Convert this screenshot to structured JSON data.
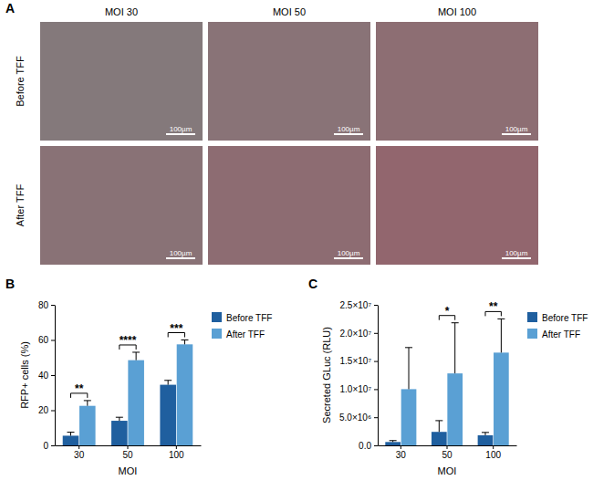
{
  "figure_a": {
    "panel": "A",
    "columns": [
      "MOI 30",
      "MOI 50",
      "MOI 100"
    ],
    "rows": [
      "Before TFF",
      "After TFF"
    ],
    "scale_bar": "100µm"
  },
  "chart_data": [
    {
      "panel": "B",
      "type": "bar",
      "categories": [
        "30",
        "50",
        "100"
      ],
      "x_label": "MOI",
      "y_label": "RFP+ cells (%)",
      "ylim": [
        0,
        80
      ],
      "yticks": [
        0,
        20,
        40,
        60,
        80
      ],
      "legend": "right",
      "series": [
        {
          "name": "Before TFF",
          "color": "#1f5f9f",
          "values": [
            5.5,
            14,
            34.5
          ],
          "errors": [
            2,
            2,
            2.5
          ]
        },
        {
          "name": "After TFF",
          "color": "#5aa0d4",
          "values": [
            22.5,
            48.5,
            57.5
          ],
          "errors": [
            3,
            4.5,
            2.5
          ]
        }
      ],
      "significance": [
        "**",
        "****",
        "***"
      ]
    },
    {
      "panel": "C",
      "type": "bar",
      "categories": [
        "30",
        "50",
        "100"
      ],
      "x_label": "MOI",
      "y_label": "Secreted GLuc (RLU)",
      "ylim": [
        0,
        25000000
      ],
      "yticks": [
        {
          "value": 0,
          "label": "0.0"
        },
        {
          "value": 5000000,
          "label": "5.0×10⁶"
        },
        {
          "value": 10000000,
          "label": "1.0×10⁷"
        },
        {
          "value": 15000000,
          "label": "1.5×10⁷"
        },
        {
          "value": 20000000,
          "label": "2.0×10⁷"
        },
        {
          "value": 25000000,
          "label": "2.5×10⁷"
        }
      ],
      "legend": "right",
      "series": [
        {
          "name": "Before TFF",
          "color": "#1f5f9f",
          "values": [
            600000,
            2400000,
            1800000
          ],
          "errors": [
            250000,
            2000000,
            500000
          ]
        },
        {
          "name": "After TFF",
          "color": "#5aa0d4",
          "values": [
            10000000,
            12800000,
            16500000
          ],
          "errors": [
            7400000,
            9000000,
            6000000
          ]
        }
      ],
      "significance": [
        null,
        "*",
        "**"
      ]
    }
  ]
}
